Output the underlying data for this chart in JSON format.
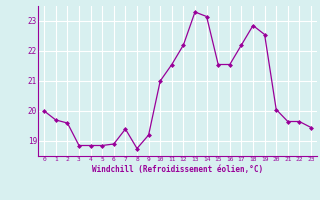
{
  "x": [
    0,
    1,
    2,
    3,
    4,
    5,
    6,
    7,
    8,
    9,
    10,
    11,
    12,
    13,
    14,
    15,
    16,
    17,
    18,
    19,
    20,
    21,
    22,
    23
  ],
  "y": [
    20.0,
    19.7,
    19.6,
    18.85,
    18.85,
    18.85,
    18.9,
    19.4,
    18.75,
    19.2,
    21.0,
    21.55,
    22.2,
    23.3,
    23.15,
    21.55,
    21.55,
    22.2,
    22.85,
    22.55,
    20.05,
    19.65,
    19.65,
    19.45
  ],
  "line_color": "#990099",
  "marker": "D",
  "marker_size": 2,
  "bg_color": "#d8f0f0",
  "grid_color": "#ffffff",
  "xlabel": "Windchill (Refroidissement éolien,°C)",
  "xlabel_color": "#990099",
  "tick_color": "#990099",
  "ylim": [
    18.5,
    23.5
  ],
  "xlim": [
    -0.5,
    23.5
  ],
  "yticks": [
    19,
    20,
    21,
    22,
    23
  ],
  "xticks": [
    0,
    1,
    2,
    3,
    4,
    5,
    6,
    7,
    8,
    9,
    10,
    11,
    12,
    13,
    14,
    15,
    16,
    17,
    18,
    19,
    20,
    21,
    22,
    23
  ]
}
